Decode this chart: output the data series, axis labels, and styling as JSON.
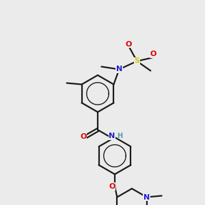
{
  "bg_color": "#ebebeb",
  "bond_color": "#1a1a1a",
  "fig_w": 3.0,
  "fig_h": 3.0,
  "dpi": 100,
  "colors": {
    "N": "#2020cc",
    "S": "#cccc00",
    "O": "#dd0000",
    "NH": "#5599aa",
    "C": "#1a1a1a"
  }
}
